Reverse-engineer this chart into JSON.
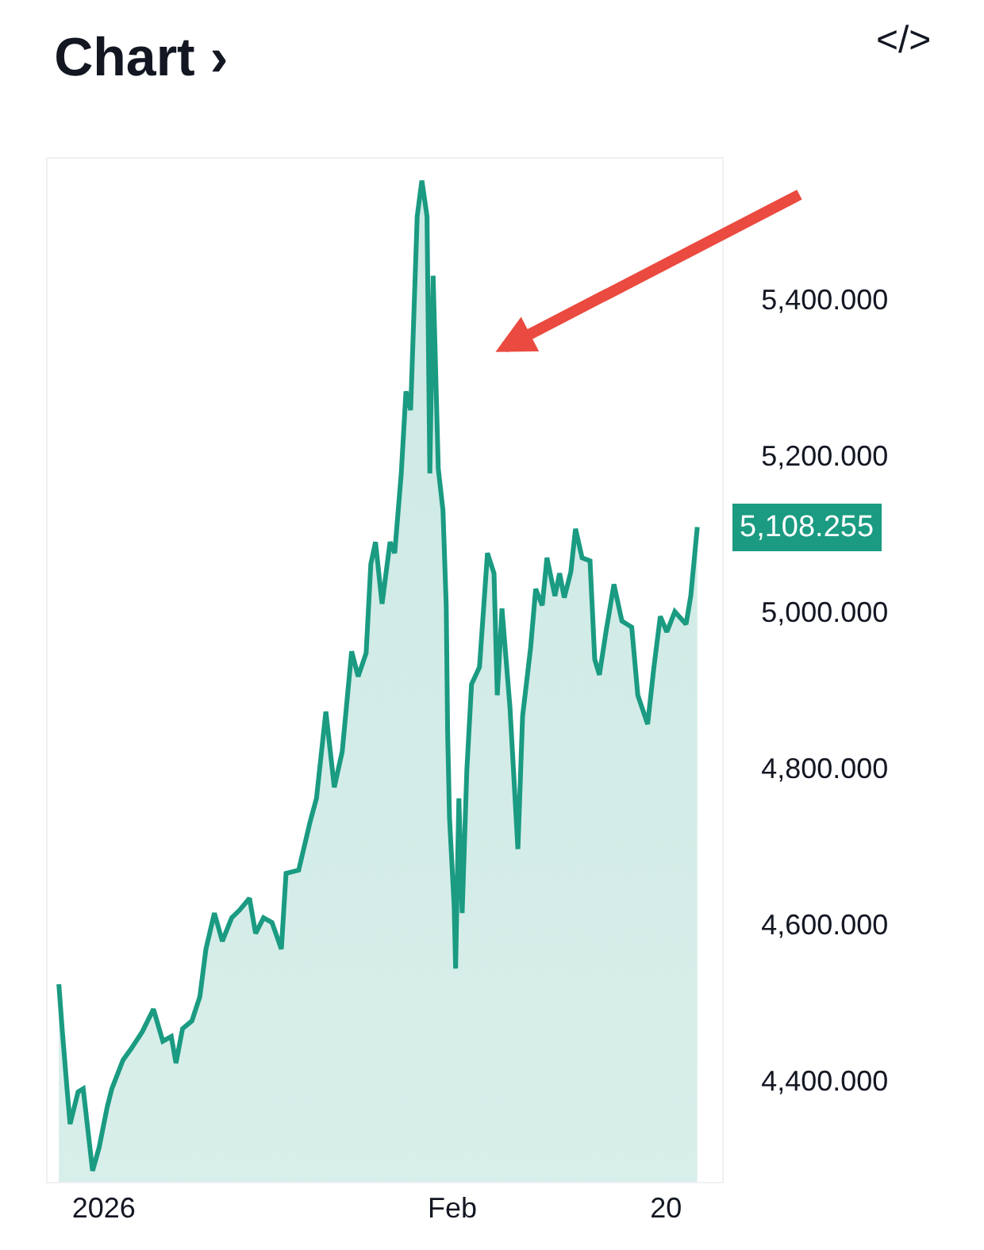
{
  "chart_data": {
    "type": "area",
    "title": "Chart ›",
    "annotations": [
      "</>"
    ],
    "xlim": [
      "2025-12-27",
      "2026-02-25"
    ],
    "ylim": [
      4270,
      5580
    ],
    "xticks": [
      {
        "value": "2026-01-01",
        "label": "2026"
      },
      {
        "value": "2026-02-01",
        "label": "Feb"
      },
      {
        "value": "2026-02-20",
        "label": "20"
      }
    ],
    "yticks": [
      {
        "value": 4400,
        "label": "4,400.000"
      },
      {
        "value": 4600,
        "label": "4,600.000"
      },
      {
        "value": 4800,
        "label": "4,800.000"
      },
      {
        "value": 5000,
        "label": "5,000.000"
      },
      {
        "value": 5200,
        "label": "5,200.000"
      },
      {
        "value": 5400,
        "label": "5,400.000"
      }
    ],
    "series": [
      {
        "color": "#1a9b82",
        "x": [
          "2025-12-28T00:00",
          "2025-12-28T07:00",
          "2025-12-28T18:00",
          "2025-12-29T00:00",
          "2025-12-29T17:00",
          "2025-12-30T04:00",
          "2025-12-31T00:00",
          "2025-12-31T14:00",
          "2026-01-01T07:00",
          "2026-01-01T17:00",
          "2026-01-02T17:00",
          "2026-01-03T10:00",
          "2026-01-04T10:00",
          "2026-01-05T10:00",
          "2026-01-06T06:00",
          "2026-01-07T00:00",
          "2026-01-07T10:00",
          "2026-01-08T00:00",
          "2026-01-08T20:00",
          "2026-01-09T13:00",
          "2026-01-10T02:00",
          "2026-01-10T20:00",
          "2026-01-11T13:00",
          "2026-01-12T09:00",
          "2026-01-13T02:00",
          "2026-01-13T23:00",
          "2026-01-14T12:00",
          "2026-01-15T05:00",
          "2026-01-15T23:00",
          "2026-01-16T19:00",
          "2026-01-17T05:00",
          "2026-01-18T08:00",
          "2026-01-19T08:00",
          "2026-01-19T22:00",
          "2026-01-20T18:00",
          "2026-01-21T12:00",
          "2026-01-22T05:00",
          "2026-01-23T01:00",
          "2026-01-23T15:00",
          "2026-01-24T08:00",
          "2026-01-24T18:00",
          "2026-01-25T04:00",
          "2026-01-25T18:00",
          "2026-01-26T11:00",
          "2026-01-26T21:00",
          "2026-01-27T11:00",
          "2026-01-27T21:00",
          "2026-01-28T07:00",
          "2026-01-28T21:00",
          "2026-01-29T07:00",
          "2026-01-29T18:00",
          "2026-01-30T00:00",
          "2026-01-30T07:00",
          "2026-01-30T18:00",
          "2026-01-31T04:00",
          "2026-01-31T11:00",
          "2026-01-31T14:00",
          "2026-01-31T18:00",
          "2026-02-01T04:00",
          "2026-02-01T07:00",
          "2026-02-01T14:00",
          "2026-02-01T21:00",
          "2026-02-02T07:00",
          "2026-02-02T17:00",
          "2026-02-03T10:00",
          "2026-02-04T03:00",
          "2026-02-04T17:00",
          "2026-02-05T00:00",
          "2026-02-05T10:00",
          "2026-02-06T03:00",
          "2026-02-06T20:00",
          "2026-02-07T06:00",
          "2026-02-07T23:00",
          "2026-02-08T10:00",
          "2026-02-09T00:00",
          "2026-02-09T10:00",
          "2026-02-10T03:00",
          "2026-02-10T13:00",
          "2026-02-10T23:00",
          "2026-02-11T13:00",
          "2026-02-11T23:00",
          "2026-02-12T13:00",
          "2026-02-13T06:00",
          "2026-02-13T16:00",
          "2026-02-14T02:00",
          "2026-02-14T16:00",
          "2026-02-15T09:00",
          "2026-02-16T02:00",
          "2026-02-16T23:00",
          "2026-02-17T12:00",
          "2026-02-18T09:00",
          "2026-02-18T22:00",
          "2026-02-19T12:00",
          "2026-02-20T02:00",
          "2026-02-20T19:00",
          "2026-02-21T19:00",
          "2026-02-22T05:00",
          "2026-02-22T19:00"
        ],
        "values": [
          4523,
          4466,
          4385,
          4344,
          4385,
          4389,
          4284,
          4314,
          4365,
          4389,
          4426,
          4440,
          4462,
          4491,
          4450,
          4456,
          4422,
          4466,
          4476,
          4507,
          4568,
          4614,
          4578,
          4608,
          4618,
          4633,
          4588,
          4608,
          4602,
          4568,
          4665,
          4669,
          4730,
          4761,
          4872,
          4775,
          4821,
          4949,
          4917,
          4947,
          5061,
          5089,
          5010,
          5089,
          5075,
          5177,
          5282,
          5258,
          5506,
          5552,
          5506,
          5177,
          5430,
          5183,
          5130,
          5008,
          4846,
          4736,
          4622,
          4543,
          4761,
          4614,
          4797,
          4907,
          4929,
          5075,
          5049,
          4893,
          5004,
          4878,
          4696,
          4866,
          4953,
          5029,
          5008,
          5069,
          5020,
          5049,
          5018,
          5051,
          5106,
          5069,
          5065,
          4939,
          4919,
          4974,
          5035,
          4988,
          4980,
          4893,
          4856,
          4927,
          4994,
          4974,
          5000,
          4984,
          5020,
          5108.255
        ],
        "value_labels": [
          null,
          null,
          null,
          null,
          null,
          null,
          null,
          null,
          null,
          null,
          null,
          null,
          null,
          null,
          null,
          null,
          null,
          null,
          null,
          null,
          null,
          null,
          null,
          null,
          null,
          null,
          null,
          null,
          null,
          null,
          null,
          null,
          null,
          null,
          null,
          null,
          null,
          null,
          null,
          null,
          null,
          null,
          null,
          null,
          null,
          null,
          null,
          null,
          null,
          null,
          null,
          null,
          null,
          null,
          null,
          null,
          null,
          null,
          null,
          null,
          null,
          null,
          null,
          null,
          null,
          null,
          null,
          null,
          null,
          null,
          null,
          null,
          null,
          null,
          null,
          null,
          null,
          null,
          null,
          null,
          null,
          null,
          null,
          null,
          null,
          null,
          null,
          null,
          null,
          null,
          null,
          null,
          null,
          null,
          null,
          null,
          null,
          "5,108.255"
        ]
      }
    ]
  }
}
